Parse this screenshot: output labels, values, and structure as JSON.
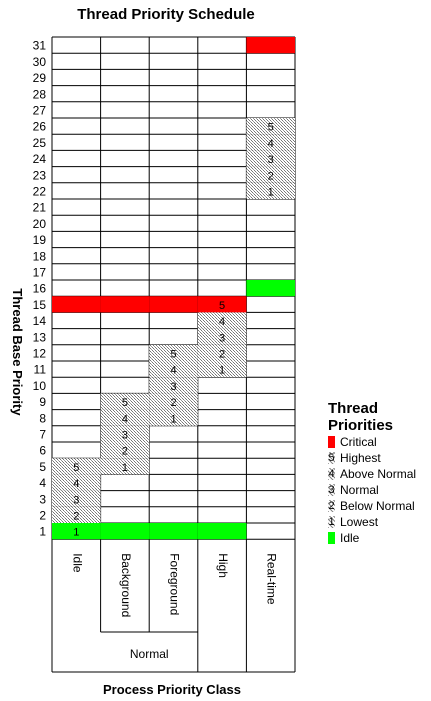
{
  "title": "Thread Priority Schedule",
  "y_axis_title": "Thread Base Priority",
  "x_axis_title": "Process Priority Class",
  "row_numbers": [
    "1",
    "2",
    "3",
    "4",
    "5",
    "6",
    "7",
    "8",
    "9",
    "10",
    "11",
    "12",
    "13",
    "14",
    "15",
    "16",
    "17",
    "18",
    "19",
    "20",
    "21",
    "22",
    "23",
    "24",
    "25",
    "26",
    "27",
    "28",
    "29",
    "30",
    "31"
  ],
  "columns": [
    "Idle",
    "Background",
    "Foreground",
    "High",
    "Real-time"
  ],
  "normal_group_label": "Normal",
  "colors": {
    "critical": "#ff0000",
    "idle": "#00ff00",
    "pattern": "#c8c8c8",
    "grid": "#000000"
  },
  "legend": {
    "title_line1": "Thread",
    "title_line2": "Priorities",
    "items": [
      {
        "marker": "",
        "label": "Critical",
        "kind": "critical"
      },
      {
        "marker": "5",
        "label": "Highest",
        "kind": "pattern"
      },
      {
        "marker": "4",
        "label": "Above Normal",
        "kind": "pattern"
      },
      {
        "marker": "3",
        "label": "Normal",
        "kind": "pattern"
      },
      {
        "marker": "2",
        "label": "Below Normal",
        "kind": "pattern"
      },
      {
        "marker": "1",
        "label": "Lowest",
        "kind": "pattern"
      },
      {
        "marker": "",
        "label": "Idle",
        "kind": "idle"
      }
    ]
  },
  "chart_data": {
    "type": "table",
    "title": "Thread Priority Schedule",
    "xlabel": "Process Priority Class",
    "ylabel": "Thread Base Priority",
    "rows": [
      1,
      31
    ],
    "columns": [
      "Idle",
      "Background",
      "Foreground",
      "High",
      "Real-time"
    ],
    "critical": [
      {
        "priority": 15,
        "columns": [
          "Idle",
          "Background",
          "Foreground",
          "High"
        ]
      },
      {
        "priority": 31,
        "columns": [
          "Real-time"
        ]
      }
    ],
    "idle": [
      {
        "priority": 1,
        "columns": [
          "Idle",
          "Background",
          "Foreground",
          "High"
        ]
      },
      {
        "priority": 16,
        "columns": [
          "Real-time"
        ]
      }
    ],
    "levels": [
      {
        "class": "Idle",
        "cells": [
          {
            "priority": 1,
            "label": "1"
          },
          {
            "priority": 2,
            "label": "2"
          },
          {
            "priority": 3,
            "label": "3"
          },
          {
            "priority": 4,
            "label": "4"
          },
          {
            "priority": 5,
            "label": "5"
          }
        ]
      },
      {
        "class": "Background",
        "cells": [
          {
            "priority": 5,
            "label": "1"
          },
          {
            "priority": 6,
            "label": "2"
          },
          {
            "priority": 7,
            "label": "3"
          },
          {
            "priority": 8,
            "label": "4"
          },
          {
            "priority": 9,
            "label": "5"
          }
        ]
      },
      {
        "class": "Foreground",
        "cells": [
          {
            "priority": 8,
            "label": "1"
          },
          {
            "priority": 9,
            "label": "2"
          },
          {
            "priority": 10,
            "label": "3"
          },
          {
            "priority": 11,
            "label": "4"
          },
          {
            "priority": 12,
            "label": "5"
          }
        ]
      },
      {
        "class": "High",
        "cells": [
          {
            "priority": 11,
            "label": "1"
          },
          {
            "priority": 12,
            "label": "2"
          },
          {
            "priority": 13,
            "label": "3"
          },
          {
            "priority": 14,
            "label": "4"
          },
          {
            "priority": 15,
            "label": "5"
          }
        ]
      },
      {
        "class": "Real-time",
        "cells": [
          {
            "priority": 22,
            "label": "1"
          },
          {
            "priority": 23,
            "label": "2"
          },
          {
            "priority": 24,
            "label": "3"
          },
          {
            "priority": 25,
            "label": "4"
          },
          {
            "priority": 26,
            "label": "5"
          }
        ]
      }
    ]
  }
}
